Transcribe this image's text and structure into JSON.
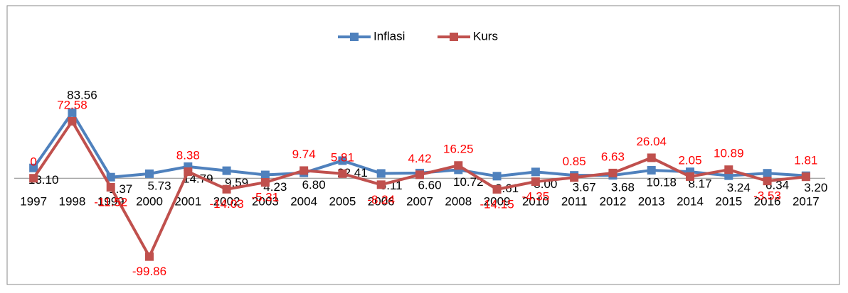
{
  "chart_data": {
    "type": "line",
    "categories": [
      "1997",
      "1998",
      "1999",
      "2000",
      "2001",
      "2002",
      "2003",
      "2004",
      "2005",
      "2006",
      "2007",
      "2008",
      "2009",
      "2010",
      "2011",
      "2012",
      "2013",
      "2014",
      "2015",
      "2016",
      "2017"
    ],
    "series": [
      {
        "name": "Inflasi",
        "color": "#4f81bd",
        "label_color": "#000000",
        "values": [
          13.1,
          83.56,
          1.37,
          5.73,
          14.79,
          9.59,
          4.23,
          6.8,
          22.41,
          6.11,
          6.6,
          10.72,
          2.61,
          8.0,
          3.67,
          3.68,
          10.18,
          8.17,
          3.24,
          6.34,
          3.2
        ],
        "value_labels": [
          "13.10",
          "83.56",
          "1.37",
          "5.73",
          "14.79",
          "9.59",
          "4.23",
          "6.80",
          "22.41",
          "6.11",
          "6.60",
          "10.72",
          "2.61",
          "8.00",
          "3.67",
          "3.68",
          "10.18",
          "8.17",
          "3.24",
          "6.34",
          "3.20"
        ]
      },
      {
        "name": "Kurs",
        "color": "#c0504d",
        "label_color": "#ff0000",
        "values": [
          0,
          72.58,
          -11.52,
          -99.86,
          8.38,
          -14.03,
          -5.31,
          9.74,
          5.81,
          -8.24,
          4.42,
          16.25,
          -14.15,
          -4.35,
          0.85,
          6.63,
          26.04,
          2.05,
          10.89,
          -3.53,
          1.81
        ],
        "value_labels": [
          "0",
          "72.58",
          "-11.52",
          "-99.86",
          "8.38",
          "-14.03",
          "-5.31",
          "9.74",
          "5.81",
          "-8.24",
          "4.42",
          "16.25",
          "-14.15",
          "-4.35",
          "0.85",
          "6.63",
          "26.04",
          "2.05",
          "10.89",
          "-3.53",
          "1.81"
        ]
      }
    ],
    "ylim": [
      -130,
      200
    ],
    "legend": "top"
  }
}
